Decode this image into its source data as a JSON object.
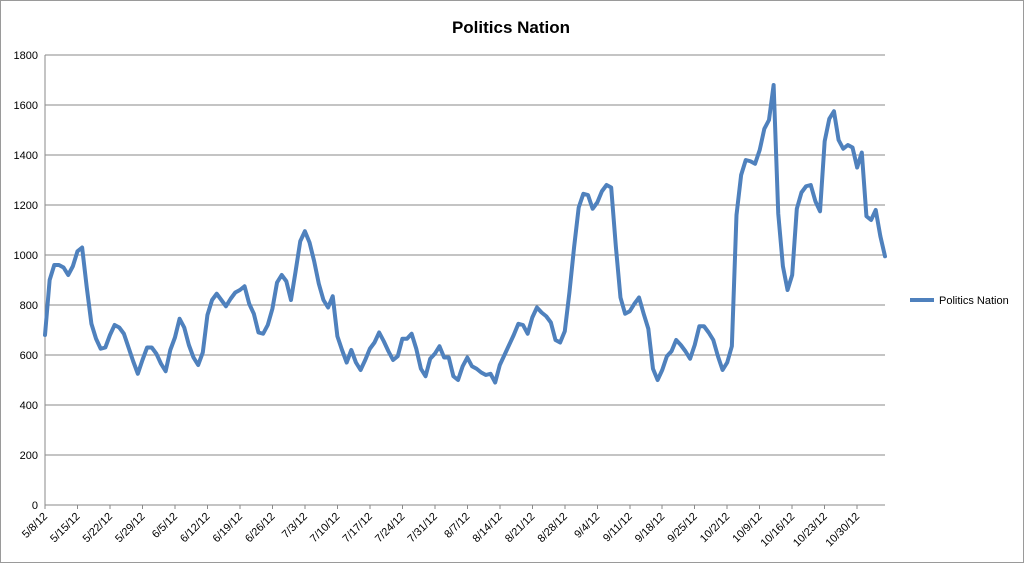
{
  "chart_data": {
    "type": "line",
    "title": "Politics Nation",
    "xlabel": "",
    "ylabel": "",
    "ylim": [
      0,
      1800
    ],
    "yticks": [
      0,
      200,
      400,
      600,
      800,
      1000,
      1200,
      1400,
      1600,
      1800
    ],
    "xtick_labels": [
      "5/8/12",
      "5/15/12",
      "5/22/12",
      "5/29/12",
      "6/5/12",
      "6/12/12",
      "6/19/12",
      "6/26/12",
      "7/3/12",
      "7/10/12",
      "7/17/12",
      "7/24/12",
      "7/31/12",
      "8/7/12",
      "8/14/12",
      "8/21/12",
      "8/28/12",
      "9/4/12",
      "9/11/12",
      "9/18/12",
      "9/25/12",
      "10/2/12",
      "10/9/12",
      "10/16/12",
      "10/23/12",
      "10/30/12"
    ],
    "grid": true,
    "legend_position": "right",
    "colors": {
      "series": "#4f81bd"
    },
    "series": [
      {
        "name": "Politics Nation",
        "values": [
          680,
          900,
          960,
          960,
          950,
          920,
          955,
          1015,
          1030,
          870,
          725,
          665,
          625,
          630,
          680,
          720,
          710,
          685,
          630,
          575,
          525,
          580,
          630,
          630,
          605,
          565,
          535,
          620,
          670,
          745,
          710,
          640,
          590,
          560,
          610,
          760,
          820,
          845,
          820,
          795,
          825,
          850,
          860,
          875,
          805,
          765,
          690,
          685,
          720,
          785,
          890,
          920,
          895,
          820,
          935,
          1055,
          1095,
          1050,
          975,
          885,
          820,
          790,
          835,
          675,
          620,
          570,
          620,
          570,
          540,
          580,
          625,
          650,
          690,
          655,
          615,
          580,
          595,
          665,
          665,
          685,
          625,
          545,
          515,
          585,
          605,
          635,
          590,
          590,
          515,
          500,
          555,
          590,
          555,
          545,
          530,
          520,
          525,
          490,
          560,
          600,
          640,
          680,
          725,
          720,
          685,
          750,
          790,
          770,
          755,
          730,
          660,
          650,
          695,
          850,
          1030,
          1190,
          1245,
          1240,
          1185,
          1210,
          1255,
          1280,
          1270,
          1035,
          830,
          765,
          775,
          805,
          830,
          765,
          705,
          545,
          500,
          540,
          595,
          615,
          660,
          640,
          615,
          585,
          640,
          715,
          715,
          690,
          660,
          595,
          540,
          570,
          635,
          1160,
          1320,
          1380,
          1375,
          1365,
          1420,
          1505,
          1540,
          1680,
          1165,
          955,
          860,
          920,
          1185,
          1250,
          1275,
          1280,
          1215,
          1175,
          1455,
          1545,
          1575,
          1460,
          1425,
          1440,
          1430,
          1350,
          1410,
          1155,
          1140,
          1180,
          1075,
          995
        ]
      }
    ]
  }
}
